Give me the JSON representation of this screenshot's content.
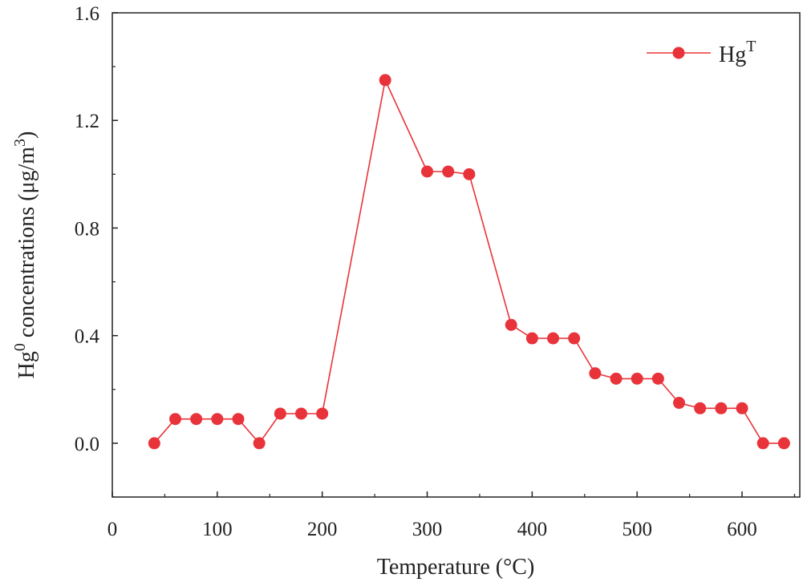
{
  "chart_data": {
    "type": "line",
    "title": "",
    "xlabel": "Temperature (°C)",
    "ylabel": {
      "prefix": "Hg",
      "sup1": "0",
      "middle": " concentrations (μg/m",
      "sup2": "3",
      "suffix": ")"
    },
    "xlim": [
      0,
      655
    ],
    "ylim": [
      -0.2,
      1.6
    ],
    "xticks": [
      0,
      100,
      200,
      300,
      400,
      500,
      600
    ],
    "xtick_labels": [
      "0",
      "100",
      "200",
      "300",
      "400",
      "500",
      "600"
    ],
    "yticks": [
      0.0,
      0.4,
      0.8,
      1.2,
      1.6
    ],
    "ytick_labels": [
      "0.0",
      "0.4",
      "0.8",
      "1.2",
      "1.6"
    ],
    "grid": false,
    "legend": {
      "placement": "top-right",
      "base": "Hg",
      "sup": "T"
    },
    "series": [
      {
        "name": "HgT",
        "color": "#e8333a",
        "x": [
          40,
          60,
          80,
          100,
          120,
          140,
          160,
          180,
          200,
          260,
          300,
          320,
          340,
          380,
          400,
          420,
          440,
          460,
          480,
          500,
          520,
          540,
          560,
          580,
          600,
          620,
          640
        ],
        "y": [
          0.0,
          0.09,
          0.09,
          0.09,
          0.09,
          0.0,
          0.11,
          0.11,
          0.11,
          1.35,
          1.01,
          1.01,
          1.0,
          0.44,
          0.39,
          0.39,
          0.39,
          0.26,
          0.24,
          0.24,
          0.24,
          0.15,
          0.13,
          0.13,
          0.13,
          0.0,
          0.0
        ]
      }
    ]
  }
}
